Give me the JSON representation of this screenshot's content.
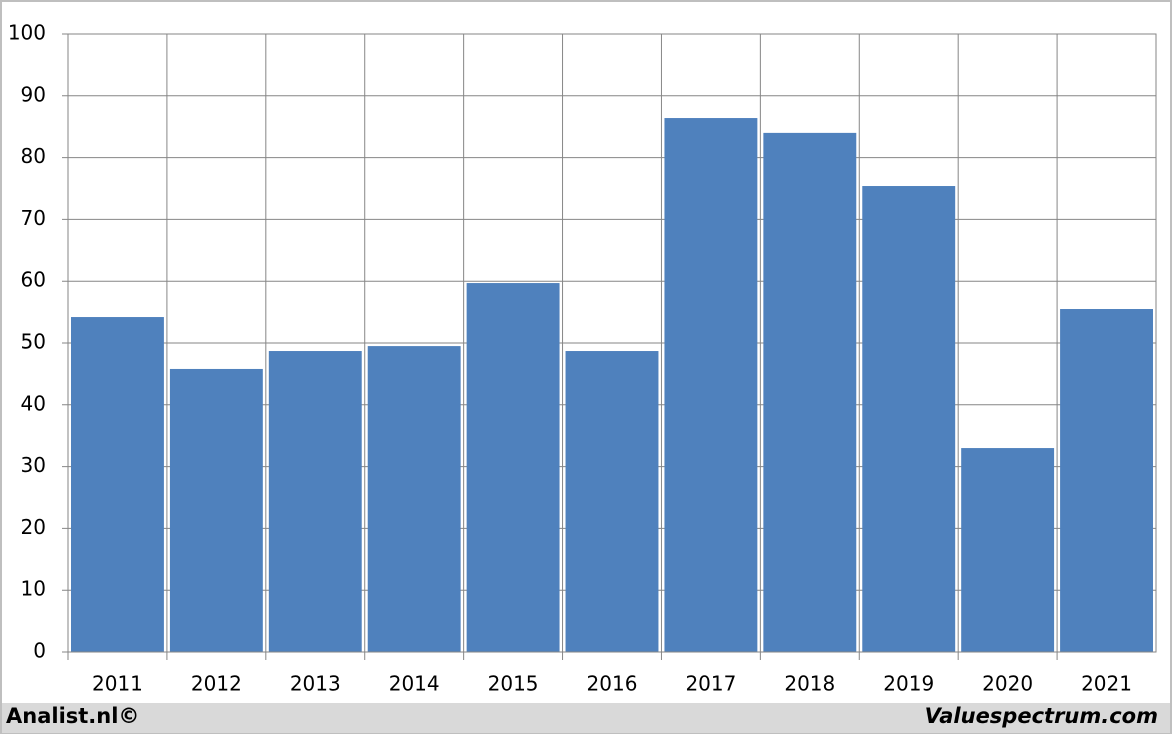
{
  "chart_data": {
    "type": "bar",
    "categories": [
      "2011",
      "2012",
      "2013",
      "2014",
      "2015",
      "2016",
      "2017",
      "2018",
      "2019",
      "2020",
      "2021"
    ],
    "values": [
      54.2,
      45.8,
      48.7,
      49.5,
      59.7,
      48.7,
      86.4,
      84.0,
      75.4,
      33.0,
      55.5
    ],
    "color": "#4f81bd",
    "ylim": [
      0,
      100
    ],
    "yticks": [
      0,
      10,
      20,
      30,
      40,
      50,
      60,
      70,
      80,
      90,
      100
    ],
    "grid": true,
    "footer_left": "Analist.nl©",
    "footer_right": "Valuespectrum.com"
  }
}
